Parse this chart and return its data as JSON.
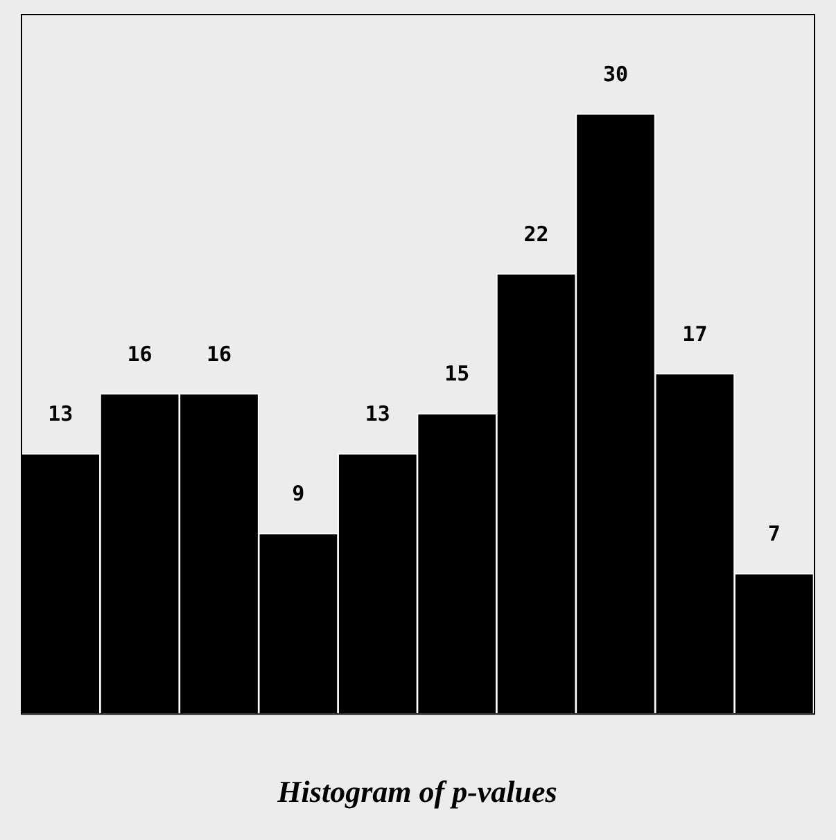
{
  "chart_data": {
    "type": "bar",
    "title": "Histogram of p-values",
    "categories": [
      null,
      null,
      null,
      null,
      null,
      null,
      null,
      null,
      null,
      null
    ],
    "values": [
      13,
      16,
      16,
      9,
      13,
      15,
      22,
      30,
      17,
      7
    ],
    "color": "#000000",
    "data_labels": true,
    "legend": false,
    "tick_labels": false
  }
}
